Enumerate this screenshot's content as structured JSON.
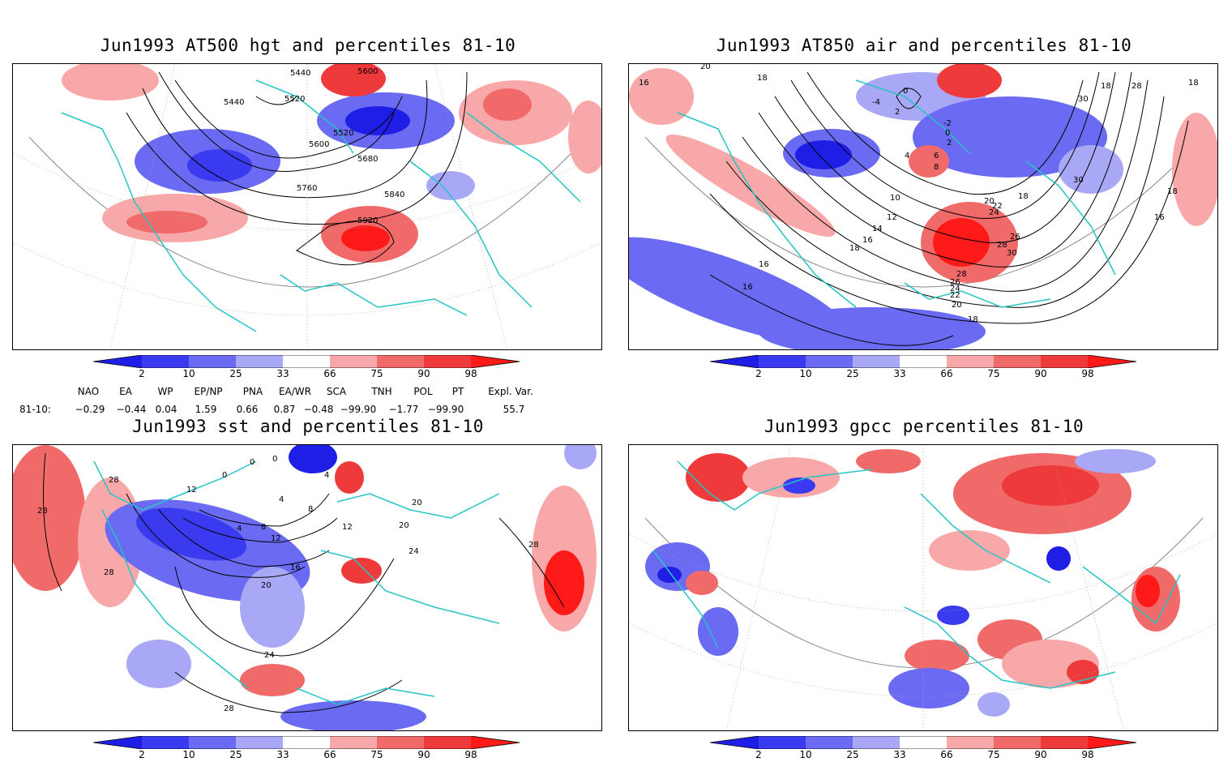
{
  "panels": [
    {
      "title": "Jun1993 AT500 hgt and percentiles 81-10",
      "contour_labels": [
        "5440",
        "5600",
        "5440",
        "5520",
        "5520",
        "5600",
        "5680",
        "5760",
        "5840",
        "5920"
      ]
    },
    {
      "title": "Jun1993 AT850 air and percentiles 81-10",
      "contour_labels": [
        "20",
        "16",
        "18",
        "-4",
        "0",
        "2",
        "-2",
        "0",
        "2",
        "4",
        "6",
        "8",
        "10",
        "12",
        "14",
        "16",
        "18",
        "18",
        "20",
        "22",
        "24",
        "26",
        "28",
        "30",
        "28",
        "26",
        "24",
        "22",
        "20",
        "18",
        "16",
        "16",
        "18",
        "28",
        "30",
        "30",
        "18",
        "16",
        "18"
      ]
    },
    {
      "title": "Jun1993 sst and percentiles 81-10",
      "contour_labels": [
        "28",
        "28",
        "28",
        "12",
        "0",
        "0",
        "0",
        "4",
        "8",
        "4",
        "4",
        "8",
        "12",
        "16",
        "20",
        "24",
        "28",
        "20",
        "20",
        "24",
        "28",
        "12"
      ]
    },
    {
      "title": "Jun1993 gpcc percentiles 81-10",
      "contour_labels": []
    }
  ],
  "colorbar": {
    "labels": [
      "2",
      "10",
      "25",
      "33",
      "66",
      "75",
      "90",
      "98"
    ],
    "colors": {
      "below_2": "#1e1ee6",
      "b2_10": "#3a3af0",
      "b10_25": "#6a6af2",
      "b25_33": "#a8a8f6",
      "b33_66": "#ffffff",
      "b66_75": "#f8a8a8",
      "b75_90": "#f06a6a",
      "b90_98": "#ee3a3a",
      "above_98": "#ff1a1a"
    }
  },
  "indices": {
    "headers": [
      "NAO",
      "EA",
      "WP",
      "EP/NP",
      "PNA",
      "EA/WR",
      "SCA",
      "TNH",
      "POL",
      "PT",
      "Expl. Var."
    ],
    "row_label": "81-10:",
    "values": [
      "−0.29",
      "−0.44",
      "0.04",
      "1.59",
      "0.66",
      "0.87",
      "−0.48",
      "−99.90",
      "−1.77",
      "−99.90",
      "55.7"
    ]
  },
  "map_colors": {
    "coast": "#25c5c5",
    "contour": "#000000",
    "grid": "#999999"
  }
}
